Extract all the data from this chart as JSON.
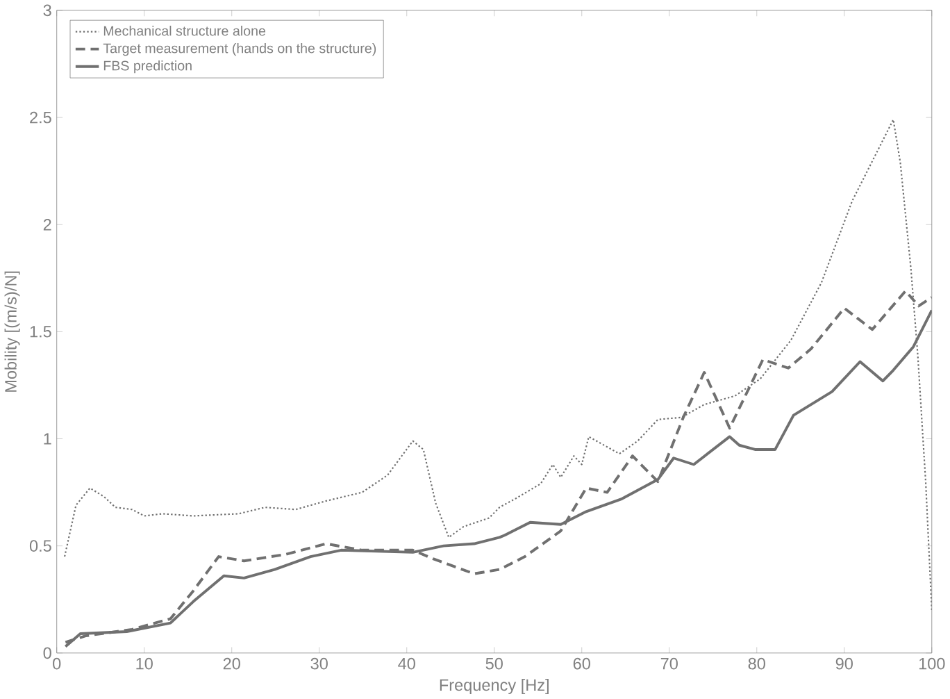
{
  "chart_data": {
    "type": "line",
    "xlabel": "Frequency [Hz]",
    "ylabel": "Mobility [(m/s)/N]",
    "xlim": [
      0,
      100
    ],
    "ylim": [
      0,
      3
    ],
    "xticks": [
      0,
      10,
      20,
      30,
      40,
      50,
      60,
      70,
      80,
      90,
      100
    ],
    "yticks": [
      0,
      0.5,
      1,
      1.5,
      2,
      2.5,
      3
    ],
    "grid": false,
    "legend": "top left",
    "marker": "none",
    "series": [
      {
        "name": "Mechanical structure alone",
        "color": "#707070",
        "line_style": "dotted",
        "x": [
          0.9,
          2.2,
          3.8,
          5.4,
          6.7,
          8.6,
          10,
          12.1,
          15.6,
          20.8,
          23.8,
          27.3,
          30.8,
          34.9,
          37.8,
          40.7,
          41.9,
          43.3,
          44.8,
          46.5,
          49.4,
          50.6,
          52.4,
          55.3,
          56.7,
          57.6,
          59.1,
          60,
          60.8,
          64.3,
          66.4,
          68.7,
          71.4,
          74,
          77.5,
          80.4,
          83.9,
          87.4,
          90.9,
          93.5,
          95.6,
          96.4,
          97.6,
          98.4,
          99.3,
          100
        ],
        "values": [
          0.45,
          0.69,
          0.77,
          0.73,
          0.68,
          0.67,
          0.64,
          0.65,
          0.64,
          0.65,
          0.68,
          0.67,
          0.71,
          0.75,
          0.83,
          0.99,
          0.95,
          0.7,
          0.54,
          0.59,
          0.63,
          0.68,
          0.72,
          0.79,
          0.88,
          0.82,
          0.92,
          0.88,
          1.01,
          0.93,
          0.99,
          1.09,
          1.1,
          1.16,
          1.2,
          1.28,
          1.46,
          1.73,
          2.11,
          2.32,
          2.49,
          2.29,
          1.8,
          1.39,
          0.8,
          0.2
        ]
      },
      {
        "name": "Target measurement (hands on the structure)",
        "color": "#707070",
        "line_style": "dashed",
        "x": [
          1,
          3.3,
          8.6,
          13,
          15.6,
          18.5,
          21.4,
          26.1,
          30.8,
          34.9,
          40.7,
          43,
          47.7,
          50.6,
          53.5,
          57.6,
          60.5,
          62.9,
          65.8,
          68.7,
          71.6,
          74,
          76.9,
          80.7,
          83.6,
          86.2,
          90,
          93.2,
          97,
          98.5,
          100
        ],
        "values": [
          0.05,
          0.08,
          0.11,
          0.16,
          0.29,
          0.45,
          0.43,
          0.46,
          0.51,
          0.48,
          0.48,
          0.44,
          0.37,
          0.39,
          0.45,
          0.57,
          0.77,
          0.75,
          0.92,
          0.8,
          1.1,
          1.31,
          1.05,
          1.37,
          1.33,
          1.42,
          1.61,
          1.51,
          1.69,
          1.62,
          1.66
        ]
      },
      {
        "name": "FBS prediction",
        "color": "#707070",
        "line_style": "solid",
        "x": [
          1,
          2.7,
          8,
          13,
          15.6,
          19.1,
          21.4,
          24.9,
          29,
          32.5,
          40.7,
          44.2,
          47.7,
          50.6,
          51.2,
          54.1,
          57.6,
          60.5,
          64.6,
          68.7,
          70.5,
          72.8,
          76.9,
          78,
          79.8,
          82.1,
          84.2,
          88.6,
          91.8,
          94.4,
          95.6,
          97.9,
          100
        ],
        "values": [
          0.03,
          0.09,
          0.1,
          0.14,
          0.24,
          0.36,
          0.35,
          0.39,
          0.45,
          0.48,
          0.47,
          0.5,
          0.51,
          0.54,
          0.55,
          0.61,
          0.6,
          0.66,
          0.72,
          0.81,
          0.91,
          0.88,
          1.01,
          0.97,
          0.95,
          0.95,
          1.11,
          1.22,
          1.36,
          1.27,
          1.32,
          1.43,
          1.6
        ]
      }
    ]
  }
}
